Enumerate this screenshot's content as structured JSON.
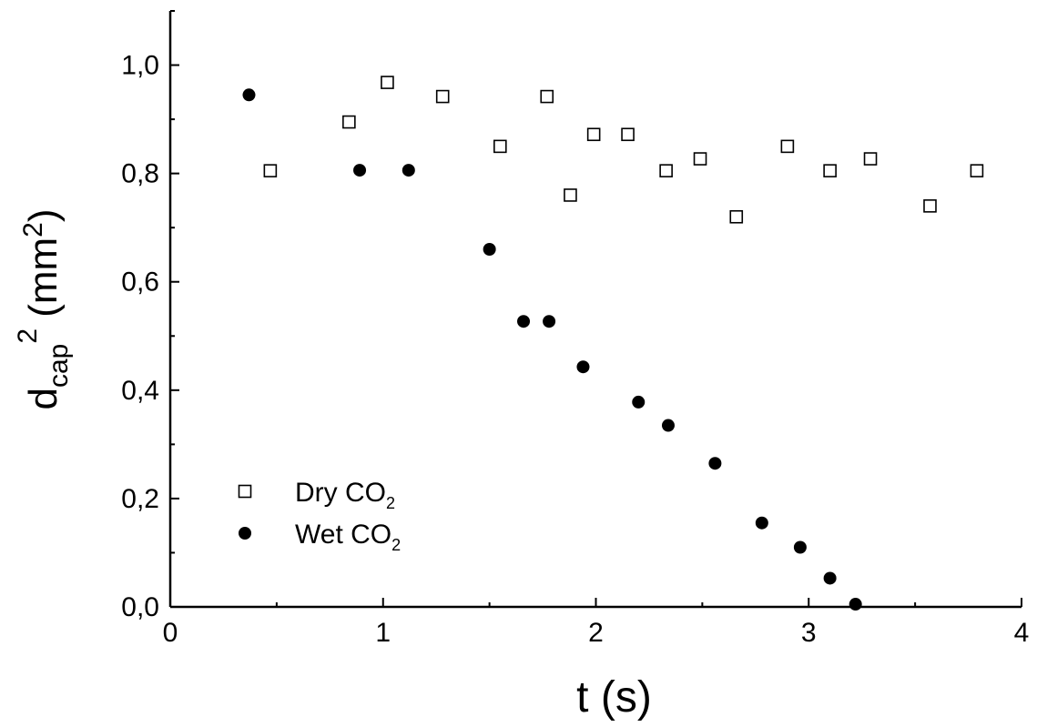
{
  "chart_data": {
    "type": "scatter",
    "title": "",
    "xlabel": "t (s)",
    "ylabel": {
      "base": "d",
      "subscript": "cap",
      "superscript": "2",
      "unit_open": "(mm",
      "unit_superscript": "2",
      "unit_close": ")"
    },
    "xlim": [
      0,
      4
    ],
    "ylim": [
      0,
      1.1
    ],
    "x_ticks": [
      "0",
      "1",
      "2",
      "3",
      "4"
    ],
    "x_tick_values": [
      0,
      1,
      2,
      3,
      4
    ],
    "y_ticks": [
      "0,0",
      "0,2",
      "0,4",
      "0,6",
      "0,8",
      "1,0"
    ],
    "y_tick_values": [
      0,
      0.2,
      0.4,
      0.6,
      0.8,
      1.0
    ],
    "grid": false,
    "legend_position": "bottom-left",
    "series": [
      {
        "name": "Dry CO2",
        "legend_label": {
          "text": "Dry  CO",
          "subscript": "2"
        },
        "marker": "open-square",
        "color": "#000000",
        "points": [
          [
            0.47,
            0.805
          ],
          [
            0.84,
            0.895
          ],
          [
            1.02,
            0.968
          ],
          [
            1.28,
            0.942
          ],
          [
            1.55,
            0.85
          ],
          [
            1.77,
            0.942
          ],
          [
            1.88,
            0.76
          ],
          [
            1.99,
            0.872
          ],
          [
            2.15,
            0.872
          ],
          [
            2.33,
            0.805
          ],
          [
            2.49,
            0.827
          ],
          [
            2.66,
            0.72
          ],
          [
            2.9,
            0.85
          ],
          [
            3.1,
            0.805
          ],
          [
            3.29,
            0.827
          ],
          [
            3.57,
            0.74
          ],
          [
            3.79,
            0.805
          ]
        ]
      },
      {
        "name": "Wet CO2",
        "legend_label": {
          "text": "Wet CO",
          "subscript": "2"
        },
        "marker": "filled-circle",
        "color": "#000000",
        "points": [
          [
            0.37,
            0.945
          ],
          [
            0.89,
            0.806
          ],
          [
            1.12,
            0.806
          ],
          [
            1.5,
            0.66
          ],
          [
            1.66,
            0.527
          ],
          [
            1.78,
            0.527
          ],
          [
            1.94,
            0.443
          ],
          [
            2.2,
            0.378
          ],
          [
            2.34,
            0.335
          ],
          [
            2.56,
            0.265
          ],
          [
            2.78,
            0.155
          ],
          [
            2.96,
            0.11
          ],
          [
            3.1,
            0.053
          ],
          [
            3.22,
            0.005
          ]
        ]
      }
    ]
  }
}
